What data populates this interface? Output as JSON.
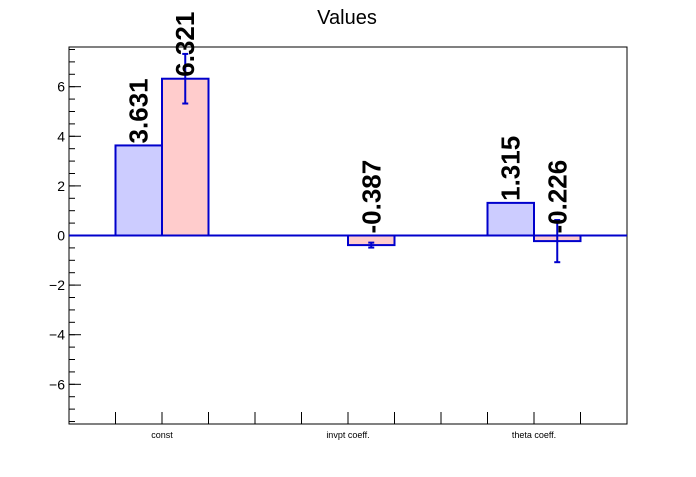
{
  "chart_data": {
    "type": "bar",
    "title": "Values",
    "xlabel": "",
    "ylabel": "",
    "categories": [
      "const",
      "invpt coeff.",
      "theta coeff."
    ],
    "ylim": [
      -7.6,
      7.6
    ],
    "yticks": [
      "−6",
      "−4",
      "−2",
      "0",
      "2",
      "4",
      "6"
    ],
    "ytick_values": [
      -6,
      -4,
      -2,
      0,
      2,
      4,
      6
    ],
    "grid": false,
    "series": [
      {
        "values": [
          3.631,
          null,
          1.315
        ],
        "labels": [
          "3.631",
          "",
          "1.315"
        ],
        "errors": [
          null,
          null,
          null
        ],
        "color": "#ccccff"
      },
      {
        "values": [
          6.321,
          -0.387,
          -0.226
        ],
        "labels": [
          "6.321",
          "-0.387",
          "-0.226"
        ],
        "errors": [
          1.0,
          0.1,
          0.85
        ],
        "color": "#ffcccc"
      }
    ],
    "edge_color": "#0000cc"
  }
}
